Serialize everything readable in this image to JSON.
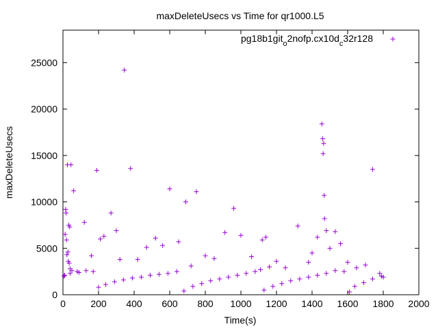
{
  "chart_data": {
    "type": "scatter",
    "title": "maxDeleteUsecs vs Time for qr1000.L5",
    "xlabel": "Time(s)",
    "ylabel": "maxDeleteUsecs",
    "xlim": [
      0,
      2000
    ],
    "ylim": [
      0,
      28500
    ],
    "xticks": [
      0,
      200,
      400,
      600,
      800,
      1000,
      1200,
      1400,
      1600,
      1800,
      2000
    ],
    "yticks": [
      0,
      5000,
      10000,
      15000,
      20000,
      25000
    ],
    "xtick_labels": [
      "0",
      "200",
      "400",
      "600",
      "800",
      "1000",
      "1200",
      "1400",
      "1600",
      "1800",
      "2000"
    ],
    "ytick_labels": [
      "0",
      "5000",
      "10000",
      "15000",
      "20000",
      "25000"
    ],
    "grid": false,
    "legend_position": "top-right",
    "marker": "+",
    "color": "#9400d3",
    "series": [
      {
        "name": "pg18b1git_o2nofp.cx10d_c32r128",
        "name_parts": [
          {
            "text": "pg18b1git",
            "sub": false
          },
          {
            "text": "o",
            "sub": true
          },
          {
            "text": "2nofp.cx10d",
            "sub": false
          },
          {
            "text": "c",
            "sub": true
          },
          {
            "text": "32r128",
            "sub": false
          }
        ],
        "x": [
          5,
          10,
          12,
          15,
          18,
          20,
          22,
          25,
          28,
          30,
          33,
          35,
          38,
          40,
          45,
          50,
          60,
          80,
          120,
          160,
          190,
          210,
          230,
          270,
          300,
          320,
          345,
          380,
          420,
          470,
          520,
          560,
          600,
          650,
          690,
          720,
          750,
          800,
          850,
          910,
          960,
          1000,
          1060,
          1120,
          1140,
          1160,
          1200,
          1250,
          1320,
          1380,
          1400,
          1430,
          1455,
          1460,
          1462,
          1465,
          1468,
          1470,
          1480,
          1500,
          1530,
          1560,
          1600,
          1650,
          1700,
          1740,
          1780,
          1800,
          10,
          40,
          90,
          130,
          170,
          200,
          240,
          290,
          340,
          390,
          440,
          490,
          540,
          590,
          640,
          680,
          730,
          780,
          830,
          880,
          930,
          980,
          1030,
          1080,
          1110,
          1130,
          1180,
          1230,
          1280,
          1330,
          1380,
          1430,
          1480,
          1530,
          1580,
          1610,
          1640,
          1690,
          1740,
          1790
        ],
        "y": [
          2000,
          2100,
          6500,
          9200,
          8800,
          5900,
          4300,
          14000,
          4600,
          3600,
          7500,
          3400,
          7300,
          2800,
          14000,
          2600,
          11200,
          2500,
          7800,
          4200,
          13400,
          6000,
          6300,
          8800,
          6900,
          3800,
          24200,
          13600,
          3800,
          5100,
          6100,
          5300,
          11400,
          5700,
          10000,
          3100,
          11100,
          4200,
          3900,
          6700,
          9300,
          6400,
          4100,
          5900,
          6200,
          3000,
          3600,
          2900,
          7400,
          3500,
          4500,
          6200,
          18400,
          16800,
          15200,
          16300,
          10700,
          8200,
          6900,
          5000,
          6800,
          5500,
          3500,
          2900,
          3200,
          13500,
          2300,
          1900,
          2100,
          2300,
          2400,
          2600,
          2500,
          800,
          1100,
          1400,
          1600,
          1800,
          1900,
          2100,
          2200,
          2300,
          2500,
          400,
          900,
          1200,
          1500,
          1700,
          1900,
          2100,
          2300,
          2500,
          2700,
          500,
          900,
          1200,
          1500,
          1700,
          1900,
          2100,
          2300,
          2600,
          2500,
          300,
          900,
          1300,
          1700,
          2000
        ]
      }
    ]
  }
}
